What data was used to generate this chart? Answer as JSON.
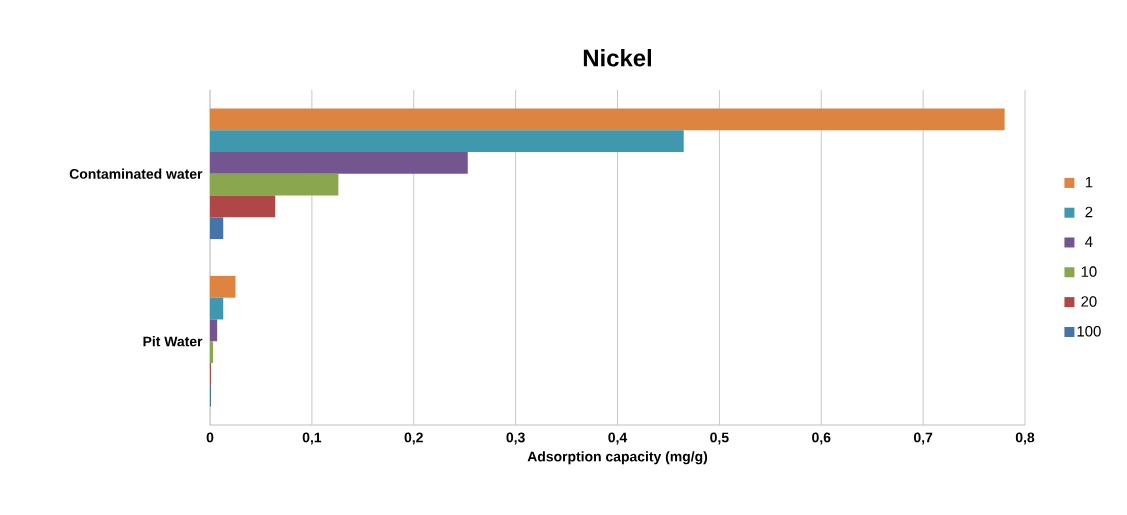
{
  "chart_data": {
    "type": "bar",
    "orientation": "horizontal",
    "title": "Nickel",
    "xlabel": "Adsorption capacity (mg/g)",
    "categories": [
      "Contaminated water",
      "Pit Water"
    ],
    "series": [
      {
        "name": "1",
        "color": "#dd8440",
        "values": [
          0.78,
          0.025
        ]
      },
      {
        "name": "2",
        "color": "#3f98ae",
        "values": [
          0.465,
          0.013
        ]
      },
      {
        "name": "4",
        "color": "#735590",
        "values": [
          0.253,
          0.007
        ]
      },
      {
        "name": "10",
        "color": "#8aa64e",
        "values": [
          0.126,
          0.003
        ]
      },
      {
        "name": "20",
        "color": "#ae4745",
        "values": [
          0.064,
          0.001
        ]
      },
      {
        "name": "100",
        "color": "#4574a8",
        "values": [
          0.013,
          0.001
        ]
      }
    ],
    "xlim": [
      0,
      0.8
    ],
    "xticks": [
      0,
      {
        "value": 0.1,
        "label": "0,1"
      },
      {
        "value": 0.2,
        "label": "0,2"
      },
      {
        "value": 0.3,
        "label": "0,3"
      },
      {
        "value": 0.4,
        "label": "0,4"
      },
      {
        "value": 0.5,
        "label": "0,5"
      },
      {
        "value": 0.6,
        "label": "0,6"
      },
      {
        "value": 0.7,
        "label": "0,7"
      },
      {
        "value": 0.8,
        "label": "0,8"
      }
    ],
    "grid": "x",
    "legend": "right"
  }
}
